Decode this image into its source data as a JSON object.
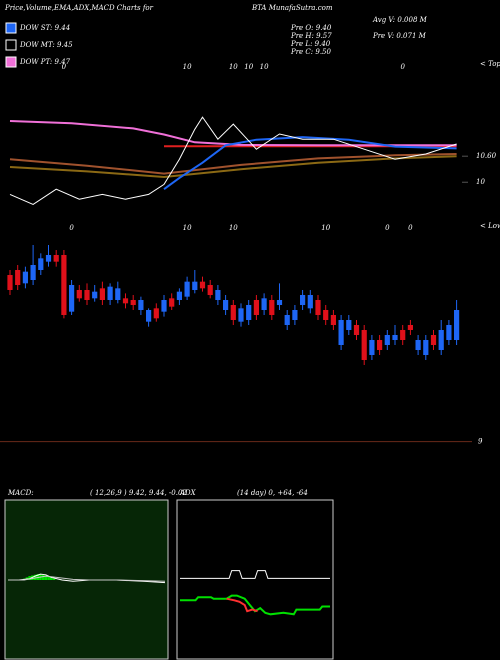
{
  "header": {
    "title_left": "Price,Volume,EMA,ADX,MACD Charts for",
    "title_right": "BTA MunafaSutra.com"
  },
  "legend": [
    {
      "label": "DOW ST: 9.44",
      "color": "#1e66f5"
    },
    {
      "label": "DOW MT: 9.45",
      "color": "#000000"
    },
    {
      "label": "DOW PT: 9.47",
      "color": "#f070d8"
    }
  ],
  "info": {
    "left": [
      "Pre  O: 9.40",
      "Pre  H: 9.57",
      "Pre  L: 9.40",
      "Pre  C: 9.50"
    ],
    "right": [
      "Avg V: 0.008 M",
      "Pre  V: 0.071 M"
    ]
  },
  "chart_data": [
    {
      "type": "line",
      "ylim": [
        8.9,
        12.7
      ],
      "yticks": [
        {
          "value": 10.6,
          "label": "10.60"
        },
        10
      ],
      "top_labels": [
        {
          "index": 7,
          "label": "0"
        },
        {
          "index": 23,
          "label": "10"
        },
        {
          "index": 29,
          "label": "10"
        },
        {
          "index": 31,
          "label": "10"
        },
        {
          "index": 33,
          "label": "10"
        },
        {
          "index": 51,
          "label": "0"
        }
      ],
      "top_caption": "< Tops",
      "series": [
        {
          "color": "#a0522d",
          "x": [
            0,
            10,
            20,
            30,
            40,
            50,
            58
          ],
          "values": [
            10.53,
            10.38,
            10.2,
            10.4,
            10.55,
            10.62,
            10.65
          ]
        },
        {
          "color": "#8b6914",
          "x": [
            0,
            10,
            20,
            30,
            40,
            50,
            58
          ],
          "values": [
            10.35,
            10.25,
            10.12,
            10.3,
            10.45,
            10.55,
            10.6
          ]
        },
        {
          "color": "#e02020",
          "x": [
            20,
            58
          ],
          "values": [
            10.83,
            10.83
          ]
        },
        {
          "color": "#f070d8",
          "x": [
            0,
            8,
            16,
            20,
            24,
            30,
            40,
            50,
            58
          ],
          "values": [
            11.41,
            11.36,
            11.24,
            11.1,
            10.92,
            10.86,
            10.85,
            10.85,
            10.85
          ]
        },
        {
          "color": "#1e66f5",
          "x": [
            20,
            22,
            25,
            28,
            32,
            38,
            44,
            50,
            58
          ],
          "values": [
            9.84,
            10.1,
            10.45,
            10.85,
            10.98,
            11.04,
            10.98,
            10.82,
            10.78
          ]
        },
        {
          "color": "#ffffff",
          "x": [
            0,
            3,
            6,
            9,
            12,
            15,
            18,
            20,
            22,
            24,
            25,
            27,
            29,
            32,
            35,
            38,
            42,
            46,
            50,
            54,
            58
          ],
          "values": [
            9.72,
            9.49,
            9.84,
            9.61,
            9.72,
            9.61,
            9.72,
            9.95,
            10.53,
            11.22,
            11.5,
            10.99,
            11.34,
            10.76,
            11.11,
            10.99,
            10.99,
            10.76,
            10.53,
            10.65,
            10.88
          ]
        }
      ]
    },
    {
      "type": "candlestick",
      "ylim": [
        8.98,
        10.3
      ],
      "yticks": [
        9
      ],
      "up_color": "#1e66f5",
      "down_color": "#e0101a",
      "bottom_labels": [
        {
          "index": 8,
          "label": "0"
        },
        {
          "index": 23,
          "label": "10"
        },
        {
          "index": 29,
          "label": "10"
        },
        {
          "index": 41,
          "label": "10"
        },
        {
          "index": 49,
          "label": "0"
        },
        {
          "index": 52,
          "label": "0"
        }
      ],
      "bottom_caption": "< Lows",
      "candles": [
        [
          10.0,
          10.03,
          9.88,
          9.91
        ],
        [
          10.03,
          10.06,
          9.91,
          9.94
        ],
        [
          9.95,
          10.05,
          9.92,
          10.02
        ],
        [
          9.97,
          10.18,
          9.94,
          10.06
        ],
        [
          10.03,
          10.13,
          10.0,
          10.1
        ],
        [
          10.08,
          10.18,
          10.05,
          10.12
        ],
        [
          10.12,
          10.15,
          10.05,
          10.08
        ],
        [
          10.12,
          10.15,
          9.74,
          9.76
        ],
        [
          9.78,
          9.97,
          9.76,
          9.94
        ],
        [
          9.91,
          9.94,
          9.84,
          9.86
        ],
        [
          9.91,
          9.95,
          9.82,
          9.85
        ],
        [
          9.86,
          9.94,
          9.84,
          9.9
        ],
        [
          9.92,
          9.96,
          9.82,
          9.85
        ],
        [
          9.85,
          9.95,
          9.82,
          9.93
        ],
        [
          9.85,
          9.96,
          9.83,
          9.92
        ],
        [
          9.86,
          9.89,
          9.8,
          9.83
        ],
        [
          9.85,
          9.88,
          9.79,
          9.82
        ],
        [
          9.79,
          9.87,
          9.76,
          9.85
        ],
        [
          9.72,
          9.8,
          9.69,
          9.79
        ],
        [
          9.8,
          9.83,
          9.72,
          9.74
        ],
        [
          9.78,
          9.88,
          9.75,
          9.85
        ],
        [
          9.86,
          9.89,
          9.79,
          9.81
        ],
        [
          9.85,
          9.92,
          9.82,
          9.9
        ],
        [
          9.87,
          9.99,
          9.85,
          9.96
        ],
        [
          9.91,
          10.03,
          9.89,
          9.96
        ],
        [
          9.96,
          9.99,
          9.9,
          9.92
        ],
        [
          9.94,
          9.97,
          9.86,
          9.88
        ],
        [
          9.85,
          9.94,
          9.82,
          9.91
        ],
        [
          9.79,
          9.88,
          9.76,
          9.85
        ],
        [
          9.82,
          9.85,
          9.7,
          9.73
        ],
        [
          9.72,
          9.83,
          9.69,
          9.8
        ],
        [
          9.73,
          9.85,
          9.7,
          9.82
        ],
        [
          9.85,
          9.88,
          9.73,
          9.76
        ],
        [
          9.79,
          9.89,
          9.76,
          9.86
        ],
        [
          9.85,
          9.88,
          9.73,
          9.76
        ],
        [
          9.82,
          9.95,
          9.79,
          9.85
        ],
        [
          9.7,
          9.79,
          9.67,
          9.76
        ],
        [
          9.73,
          9.82,
          9.7,
          9.79
        ],
        [
          9.82,
          9.91,
          9.79,
          9.88
        ],
        [
          9.8,
          9.91,
          9.77,
          9.88
        ],
        [
          9.85,
          9.88,
          9.73,
          9.76
        ],
        [
          9.79,
          9.82,
          9.7,
          9.73
        ],
        [
          9.76,
          9.79,
          9.67,
          9.7
        ],
        [
          9.58,
          9.76,
          9.55,
          9.73
        ],
        [
          9.67,
          9.76,
          9.64,
          9.73
        ],
        [
          9.7,
          9.73,
          9.61,
          9.64
        ],
        [
          9.67,
          9.7,
          9.46,
          9.49
        ],
        [
          9.52,
          9.64,
          9.49,
          9.61
        ],
        [
          9.61,
          9.64,
          9.52,
          9.55
        ],
        [
          9.58,
          9.67,
          9.55,
          9.64
        ],
        [
          9.61,
          9.7,
          9.58,
          9.64
        ],
        [
          9.67,
          9.7,
          9.58,
          9.61
        ],
        [
          9.7,
          9.73,
          9.64,
          9.67
        ],
        [
          9.55,
          9.64,
          9.52,
          9.61
        ],
        [
          9.52,
          9.64,
          9.49,
          9.61
        ],
        [
          9.64,
          9.67,
          9.55,
          9.58
        ],
        [
          9.55,
          9.73,
          9.52,
          9.67
        ],
        [
          9.61,
          9.73,
          9.58,
          9.7
        ],
        [
          9.61,
          9.85,
          9.58,
          9.79
        ]
      ]
    },
    {
      "type": "macd",
      "title": "MACD:",
      "params": "( 12,26,9 ) 9.42, 9.44, -0.02",
      "ylim": [
        -0.6,
        0.6
      ],
      "background": "#062606",
      "histogram": {
        "color": "#00e000",
        "x": [
          6,
          7,
          8,
          9,
          10,
          11,
          12,
          13,
          14,
          15,
          16,
          17
        ],
        "values": [
          0.01,
          0.02,
          0.03,
          0.035,
          0.04,
          0.045,
          0.045,
          0.04,
          0.035,
          0.03,
          0.02,
          0.01
        ]
      },
      "series": [
        {
          "color": "#ffffff",
          "x": [
            0,
            4,
            8,
            10,
            12,
            14,
            16,
            20,
            24,
            30,
            40,
            50,
            58
          ],
          "values": [
            0,
            0,
            0.01,
            0.03,
            0.045,
            0.04,
            0.02,
            0,
            -0.01,
            0,
            0,
            -0.01,
            -0.02
          ]
        },
        {
          "color": "#c8c8c8",
          "x": [
            0,
            6,
            10,
            14,
            18,
            24,
            30,
            40,
            50,
            58
          ],
          "values": [
            0,
            0,
            0.015,
            0.03,
            0.02,
            0.005,
            0,
            0,
            -0.005,
            -0.01
          ]
        }
      ]
    },
    {
      "type": "adx",
      "title": "ADX",
      "params": "(14 day) 0, +64, -64",
      "ylim": [
        0,
        100
      ],
      "background": "#000000",
      "series": [
        {
          "color": "#ffffff",
          "x": [
            0,
            19,
            20,
            23,
            24,
            29,
            30,
            33,
            34,
            58
          ],
          "values": [
            51,
            51,
            56,
            56,
            51,
            51,
            56,
            56,
            51,
            51
          ]
        },
        {
          "color": "#00e000",
          "x": [
            0,
            6,
            7,
            12,
            13,
            18,
            20,
            22,
            25,
            27,
            29,
            31,
            33,
            35,
            40,
            44,
            45,
            54,
            55,
            58
          ],
          "values": [
            37,
            37,
            39,
            39,
            38,
            38,
            40,
            40,
            38,
            34,
            30,
            32,
            29,
            28,
            29,
            28,
            31,
            31,
            33,
            33
          ]
        },
        {
          "color": "#ff3030",
          "x": [
            18,
            21,
            23,
            25,
            26,
            28,
            30
          ],
          "values": [
            38,
            37,
            36,
            34,
            30,
            31,
            30
          ]
        }
      ]
    }
  ]
}
